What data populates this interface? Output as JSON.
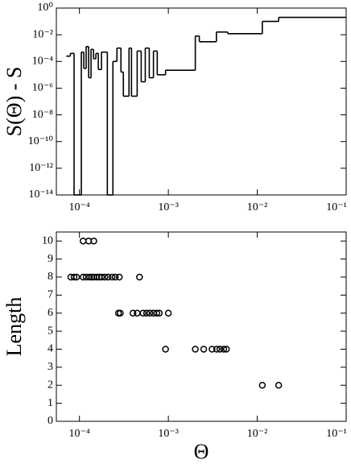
{
  "chart_data": [
    {
      "type": "step",
      "ylabel": "S(Θ) - S",
      "xlog": true,
      "ylog": true,
      "color": "#000000",
      "xlim": [
        5.5e-05,
        0.1
      ],
      "ylim": [
        1e-14,
        1
      ],
      "xticks": [
        {
          "value": 0.0001,
          "label": "10⁻⁴"
        },
        {
          "value": 0.001,
          "label": "10⁻³"
        },
        {
          "value": 0.01,
          "label": "10⁻²"
        },
        {
          "value": 0.1,
          "label": "10⁻¹"
        }
      ],
      "yticks": [
        {
          "value": 1e-14,
          "label": "10⁻¹⁴"
        },
        {
          "value": 1e-12,
          "label": "10⁻¹²"
        },
        {
          "value": 1e-10,
          "label": "10⁻¹⁰"
        },
        {
          "value": 1e-08,
          "label": "10⁻⁸"
        },
        {
          "value": 1e-06,
          "label": "10⁻⁶"
        },
        {
          "value": 0.0001,
          "label": "10⁻⁴"
        },
        {
          "value": 0.01,
          "label": "10⁻²"
        },
        {
          "value": 1,
          "label": "10⁰"
        }
      ],
      "x": [
        7.1e-05,
        7.9e-05,
        8.7e-05,
        0.000105,
        0.000112,
        0.000119,
        0.000127,
        0.000135,
        0.000144,
        0.000153,
        0.000163,
        0.000177,
        0.000206,
        0.000238,
        0.000264,
        0.000293,
        0.000312,
        0.000361,
        0.000385,
        0.000446,
        0.000495,
        0.00055,
        0.00061,
        0.00068,
        0.00075,
        0.00093,
        0.00201,
        0.00223,
        0.00347,
        0.00465,
        0.0114,
        0.0174
      ],
      "values": [
        0.00025,
        0.0004,
        1e-14,
        0.0005,
        3e-05,
        0.0013,
        6e-06,
        0.0008,
        0.00016,
        0.0004,
        2.5e-05,
        0.0005,
        1e-14,
        0.0001,
        0.001,
        1.6e-05,
        2.5e-07,
        0.001,
        2.5e-07,
        0.0006,
        3e-06,
        0.001,
        6e-06,
        0.0006,
        1e-05,
        2.2e-05,
        0.008,
        0.003,
        0.016,
        0.012,
        0.1,
        0.2
      ]
    },
    {
      "type": "scatter",
      "ylabel": "Length",
      "xlabel": "Θ",
      "xlog": true,
      "ylog": false,
      "color": "#000000",
      "xlim": [
        5.5e-05,
        0.1
      ],
      "ylim": [
        0,
        10.5
      ],
      "xticks": [
        {
          "value": 0.0001,
          "label": "10⁻⁴"
        },
        {
          "value": 0.001,
          "label": "10⁻³"
        },
        {
          "value": 0.01,
          "label": "10⁻²"
        },
        {
          "value": 0.1,
          "label": "10⁻¹"
        }
      ],
      "yticks": [
        0,
        1,
        2,
        3,
        4,
        5,
        6,
        7,
        8,
        9,
        10
      ],
      "x": [
        0.00011,
        0.000127,
        0.000145,
        8e-05,
        8.7e-05,
        9.3e-05,
        0.00011,
        0.000119,
        0.00013,
        0.000138,
        0.000145,
        0.000157,
        0.000167,
        0.000177,
        0.000193,
        0.00021,
        0.000233,
        0.000253,
        0.000281,
        0.000474,
        0.000275,
        0.000288,
        0.0004,
        0.000446,
        0.00052,
        0.00057,
        0.00062,
        0.00068,
        0.00074,
        0.00079,
        0.001,
        0.00093,
        0.00201,
        0.0025,
        0.0031,
        0.0035,
        0.0038,
        0.0042,
        0.0045,
        0.0114,
        0.0174
      ],
      "values": [
        10,
        10,
        10,
        8,
        8,
        8,
        8,
        8,
        8,
        8,
        8,
        8,
        8,
        8,
        8,
        8,
        8,
        8,
        8,
        8,
        6,
        6,
        6,
        6,
        6,
        6,
        6,
        6,
        6,
        6,
        6,
        4,
        4,
        4,
        4,
        4,
        4,
        4,
        4,
        2,
        2
      ]
    }
  ]
}
